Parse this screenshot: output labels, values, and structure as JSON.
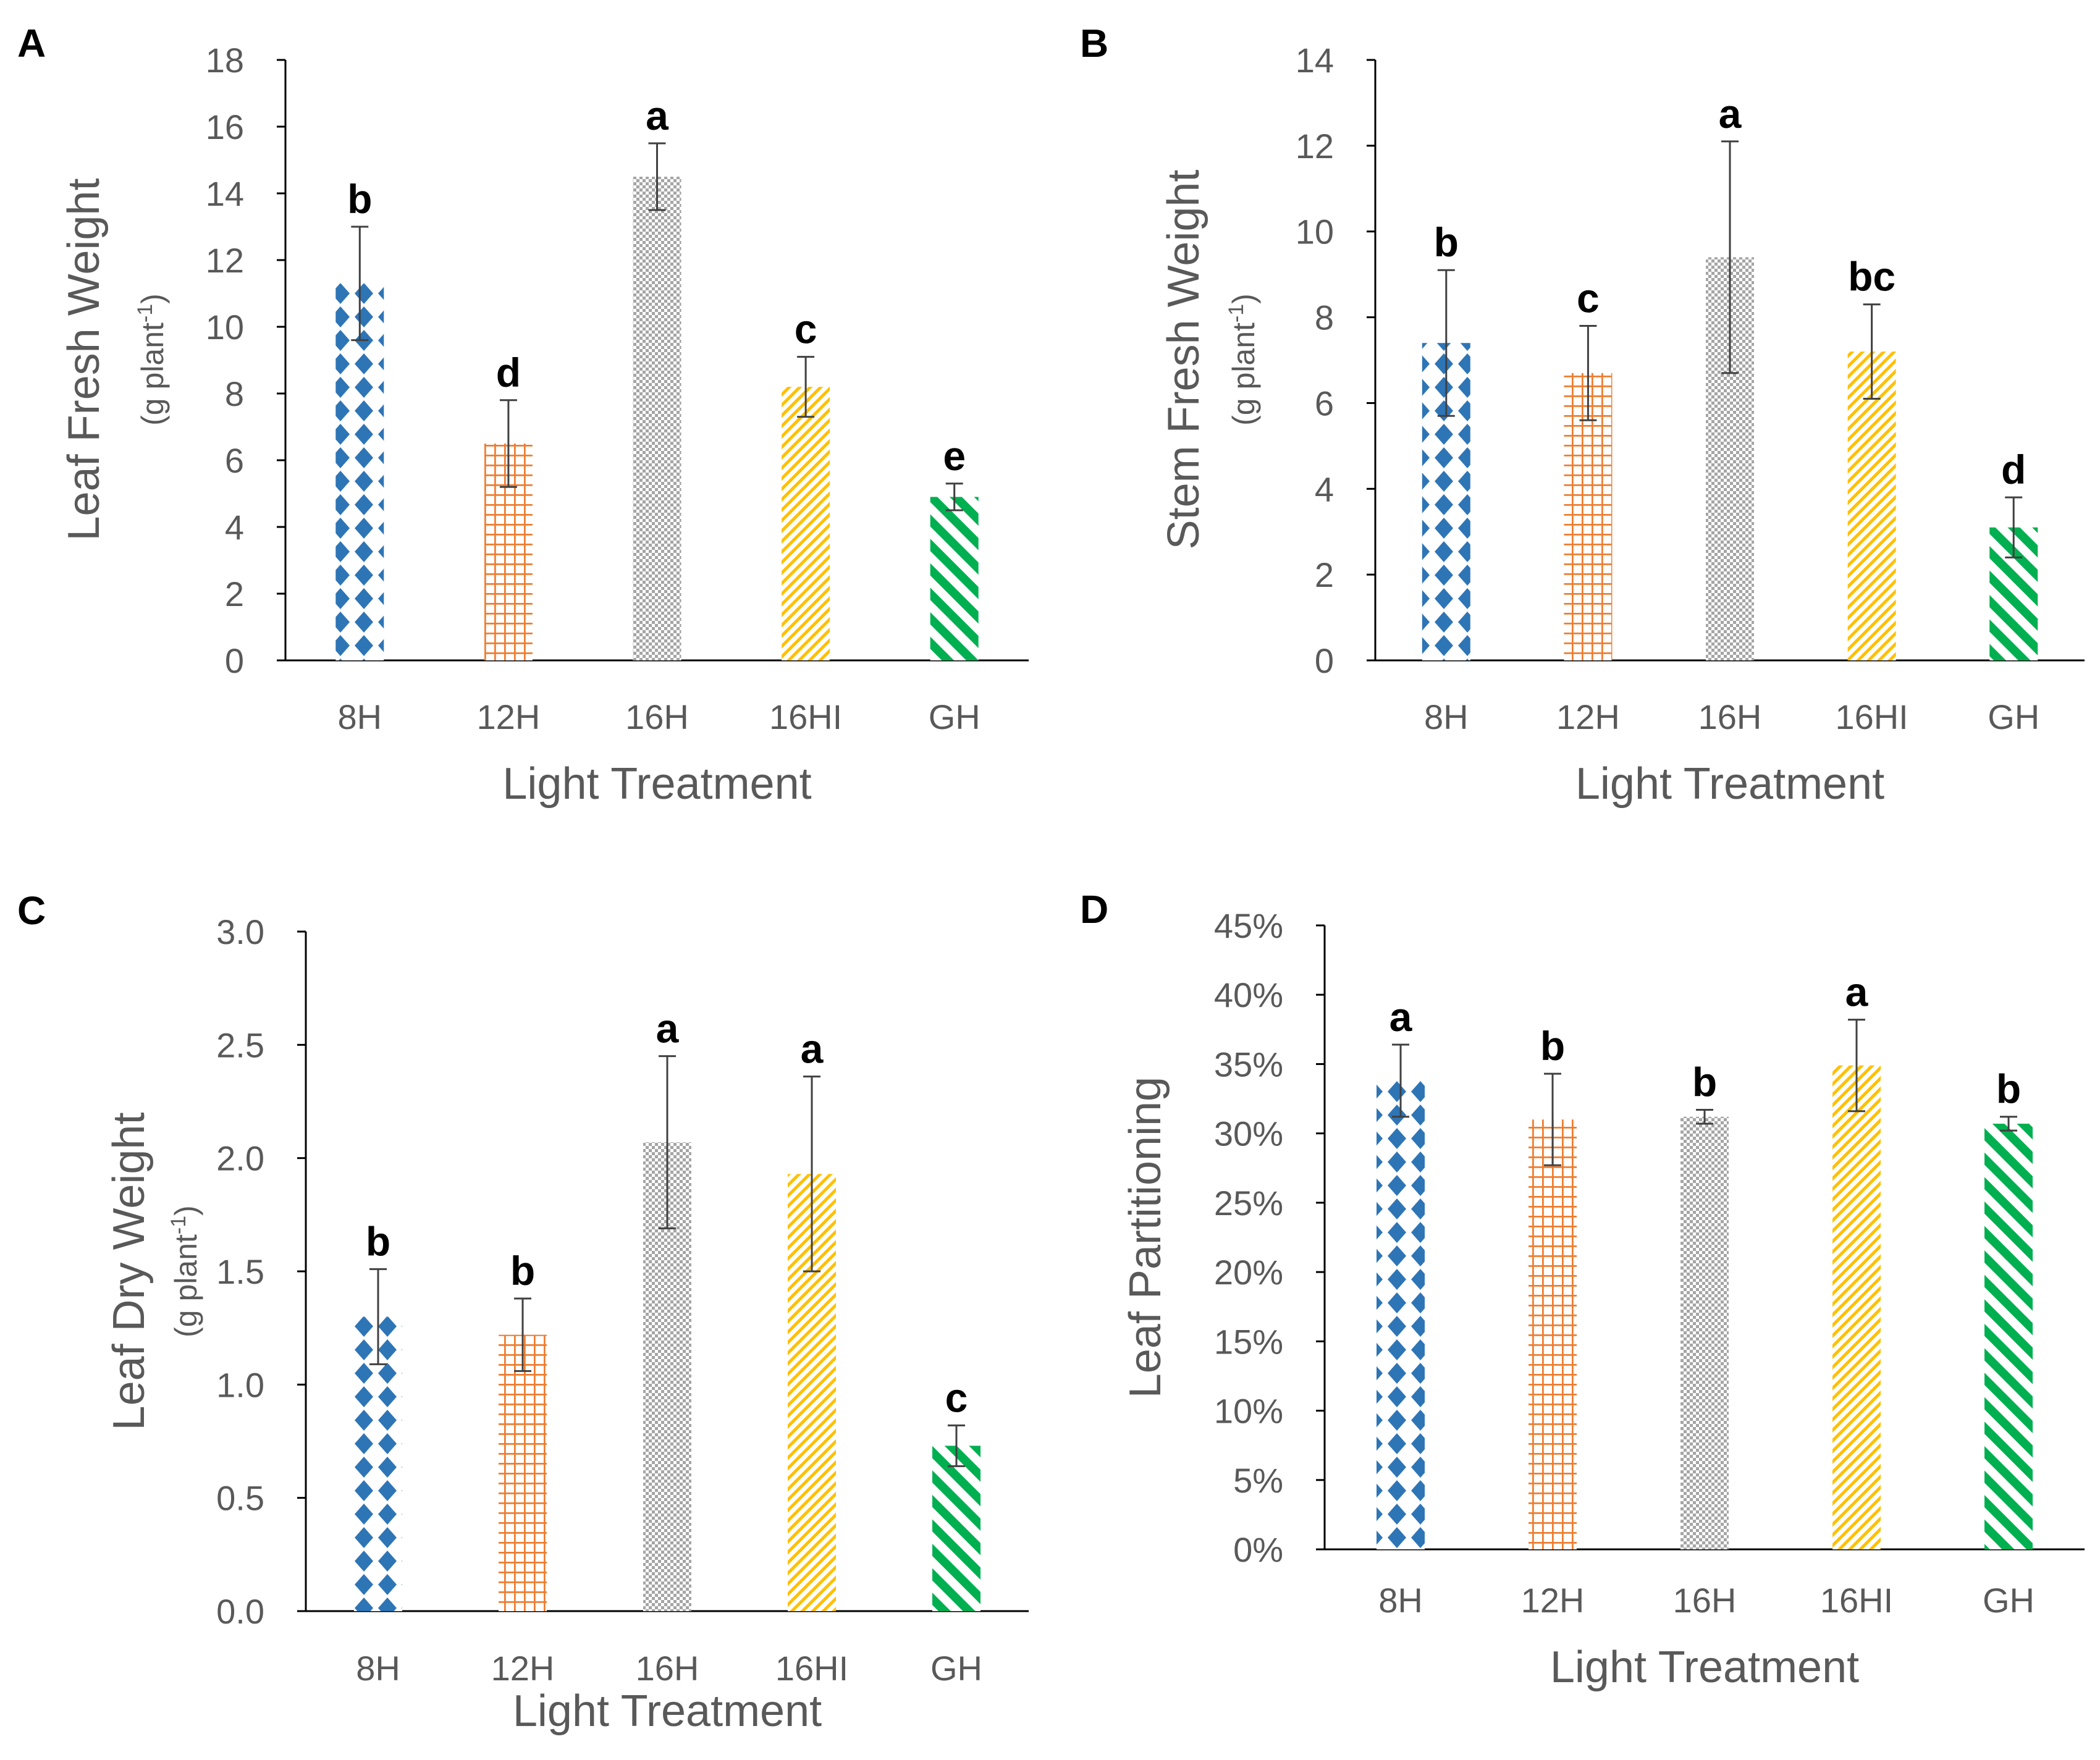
{
  "palette": {
    "8H": "#2e75b6",
    "12H": "#ed7d31",
    "16H": "#a5a5a5",
    "16HI": "#ffc000",
    "GH": "#00b050"
  },
  "chart_data": [
    {
      "type": "bar",
      "panel": "A",
      "categories": [
        "8H",
        "12H",
        "16H",
        "16HI",
        "GH"
      ],
      "values": [
        11.3,
        6.5,
        14.5,
        8.2,
        4.9
      ],
      "errors": [
        1.7,
        1.3,
        1.0,
        0.9,
        0.4
      ],
      "letters": [
        "b",
        "d",
        "a",
        "c",
        "e"
      ],
      "ylim": [
        0,
        18
      ],
      "yticks": [
        0,
        2,
        4,
        6,
        8,
        10,
        12,
        14,
        16,
        18
      ],
      "ytick_labels": [
        "0",
        "2",
        "4",
        "6",
        "8",
        "10",
        "12",
        "14",
        "16",
        "18"
      ],
      "ylabel": "Leaf Fresh Weight",
      "yunit_main": "(g plant",
      "yunit_sup": "-1",
      "yunit_close": ")",
      "xlabel": "Light Treatment"
    },
    {
      "type": "bar",
      "panel": "B",
      "categories": [
        "8H",
        "12H",
        "16H",
        "16HI",
        "GH"
      ],
      "values": [
        7.4,
        6.7,
        9.4,
        7.2,
        3.1
      ],
      "errors": [
        1.7,
        1.1,
        2.7,
        1.1,
        0.7
      ],
      "letters": [
        "b",
        "c",
        "a",
        "bc",
        "d"
      ],
      "ylim": [
        0,
        14
      ],
      "yticks": [
        0,
        2,
        4,
        6,
        8,
        10,
        12,
        14
      ],
      "ytick_labels": [
        "0",
        "2",
        "4",
        "6",
        "8",
        "10",
        "12",
        "14"
      ],
      "ylabel": "Stem Fresh Weight",
      "yunit_main": "(g plant",
      "yunit_sup": "-1",
      "yunit_close": ")",
      "xlabel": "Light Treatment"
    },
    {
      "type": "bar",
      "panel": "C",
      "categories": [
        "8H",
        "12H",
        "16H",
        "16HI",
        "GH"
      ],
      "values": [
        1.3,
        1.22,
        2.07,
        1.93,
        0.73
      ],
      "errors": [
        0.21,
        0.16,
        0.38,
        0.43,
        0.09
      ],
      "letters": [
        "b",
        "b",
        "a",
        "a",
        "c"
      ],
      "ylim": [
        0,
        3
      ],
      "yticks": [
        0,
        0.5,
        1,
        1.5,
        2,
        2.5,
        3
      ],
      "ytick_labels": [
        "0.0",
        "0.5",
        "1.0",
        "1.5",
        "2.0",
        "2.5",
        "3.0"
      ],
      "ylabel": "Leaf Dry Weight",
      "yunit_main": "(g plant",
      "yunit_sup": "-1",
      "yunit_close": ")",
      "xlabel": "Light Treatment"
    },
    {
      "type": "bar",
      "panel": "D",
      "categories": [
        "8H",
        "12H",
        "16H",
        "16HI",
        "GH"
      ],
      "values": [
        33.8,
        31.0,
        31.2,
        34.9,
        30.7
      ],
      "errors": [
        2.6,
        3.3,
        0.5,
        3.3,
        0.5
      ],
      "letters": [
        "a",
        "b",
        "b",
        "a",
        "b"
      ],
      "ylim": [
        0,
        45
      ],
      "yticks": [
        0,
        5,
        10,
        15,
        20,
        25,
        30,
        35,
        40,
        45
      ],
      "ytick_labels": [
        "0%",
        "5%",
        "10%",
        "15%",
        "20%",
        "25%",
        "30%",
        "35%",
        "40%",
        "45%"
      ],
      "ylabel": "Leaf Partitioning",
      "yunit_main": "",
      "yunit_sup": "",
      "yunit_close": "",
      "xlabel": "Light Treatment"
    }
  ]
}
